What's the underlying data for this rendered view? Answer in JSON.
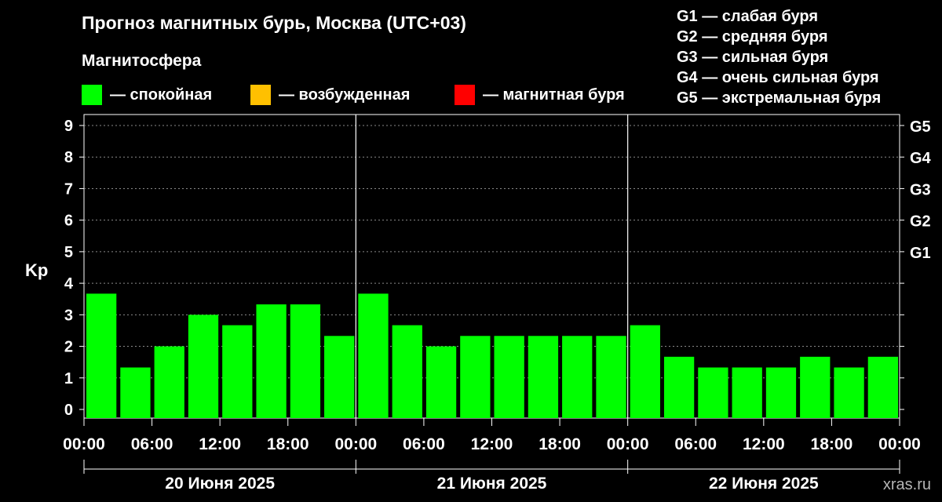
{
  "title": "Прогноз магнитных бурь, Москва (UTC+03)",
  "magnetosphere_label": "Магнитосфера",
  "legend": [
    {
      "label": "— спокойная",
      "color": "#00ff00"
    },
    {
      "label": "— возбужденная",
      "color": "#ffc000"
    },
    {
      "label": "— магнитная буря",
      "color": "#ff0000"
    }
  ],
  "storm_levels": [
    "G1 — слабая буря",
    "G2 — средняя буря",
    "G3 — сильная буря",
    "G4 — очень сильная буря",
    "G5 — экстремальная буря"
  ],
  "watermark": "xras.ru",
  "chart_data": {
    "type": "bar",
    "ylabel": "Kp",
    "ylim": [
      0,
      9
    ],
    "yticks": [
      "0",
      "1",
      "2",
      "3",
      "4",
      "5",
      "6",
      "7",
      "8",
      "9"
    ],
    "right_axis_labels": [
      "G1",
      "G2",
      "G3",
      "G4",
      "G5"
    ],
    "x_tick_labels": [
      "00:00",
      "06:00",
      "12:00",
      "18:00",
      "00:00",
      "06:00",
      "12:00",
      "18:00",
      "00:00",
      "06:00",
      "12:00",
      "18:00",
      "00:00"
    ],
    "days": [
      "20 Июня 2025",
      "21 Июня 2025",
      "22 Июня 2025"
    ],
    "bar_color": "#00ff00",
    "interval_hours": 3,
    "values": [
      3.67,
      1.33,
      2.0,
      3.0,
      2.67,
      3.33,
      3.33,
      2.33,
      3.67,
      2.67,
      2.0,
      2.33,
      2.33,
      2.33,
      2.33,
      2.33,
      2.67,
      1.67,
      1.33,
      1.33,
      1.33,
      1.67,
      1.33,
      1.67
    ],
    "grid": true,
    "legend_position": "top"
  }
}
